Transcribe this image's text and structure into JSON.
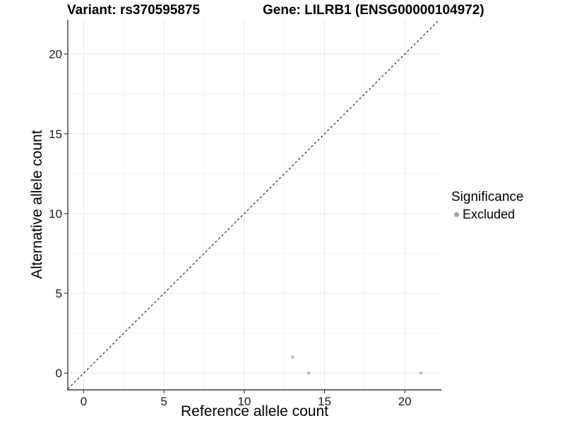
{
  "title": {
    "left": "Variant: rs370595875",
    "right": "Gene: LILRB1 (ENSG00000104972)"
  },
  "axes": {
    "x_label": "Reference allele count",
    "y_label": "Alternative allele count"
  },
  "legend": {
    "title": "Significance",
    "items": [
      {
        "label": "Excluded",
        "color": "#a5a5a5"
      }
    ]
  },
  "chart_data": {
    "type": "scatter",
    "title": "Variant: rs370595875 / Gene: LILRB1 (ENSG00000104972)",
    "xlabel": "Reference allele count",
    "ylabel": "Alternative allele count",
    "x_ticks": [
      0,
      5,
      10,
      15,
      20
    ],
    "y_ticks": [
      0,
      5,
      10,
      15,
      20
    ],
    "x_minor_ticks": [
      2.5,
      7.5,
      12.5,
      17.5
    ],
    "y_minor_ticks": [
      2.5,
      7.5,
      12.5,
      17.5
    ],
    "xlim": [
      -0.99,
      22.28
    ],
    "ylim": [
      -1.05,
      22.15
    ],
    "grid": true,
    "legend_position": "right",
    "reference_line": {
      "type": "identity",
      "slope": 1,
      "intercept": 0,
      "style": "dashed"
    },
    "series": [
      {
        "name": "Excluded",
        "color": "#bdbdbd",
        "points": [
          {
            "x": 13,
            "y": 1
          },
          {
            "x": 14,
            "y": 0
          },
          {
            "x": 21,
            "y": 0
          }
        ]
      }
    ]
  },
  "style": {
    "background": "#ffffff",
    "grid_major": "#e7e7e7",
    "grid_minor": "#f2f2f2",
    "axis_line": "#3c3c3c",
    "tick_mark": "#3c3c3c",
    "tick_text": "#1a1a1a",
    "identity_line": "#111111",
    "point_color": "#bdbdbd",
    "point_radius": 2.3
  }
}
